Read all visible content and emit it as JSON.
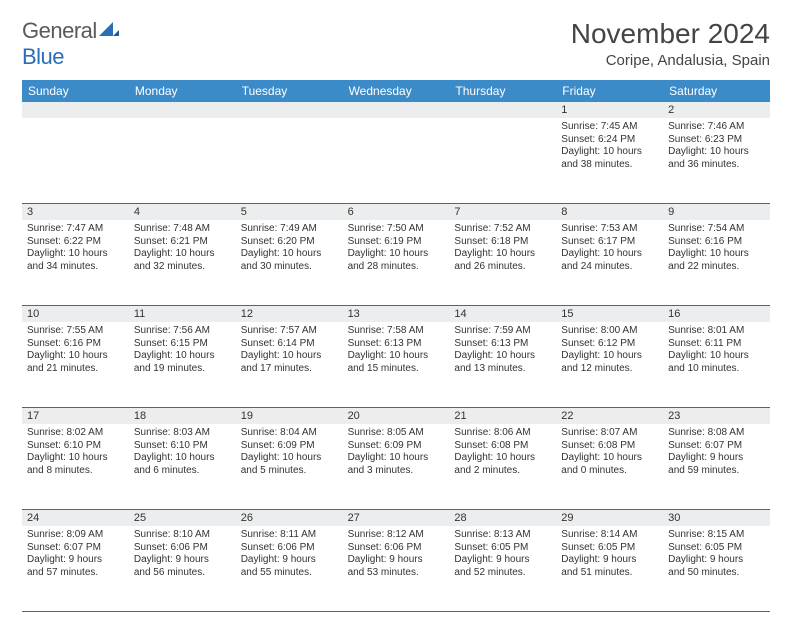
{
  "brand": {
    "name_part1": "General",
    "name_part2": "Blue"
  },
  "header": {
    "month_title": "November 2024",
    "location": "Coripe, Andalusia, Spain"
  },
  "colors": {
    "header_bar": "#3b8bc9",
    "divider": "#2a6fb5",
    "daynum_bg": "#ecedee",
    "text": "#333333",
    "title_text": "#444444",
    "logo_gray": "#5a5a5a",
    "logo_blue": "#2a6fb5",
    "background": "#ffffff"
  },
  "day_labels": [
    "Sunday",
    "Monday",
    "Tuesday",
    "Wednesday",
    "Thursday",
    "Friday",
    "Saturday"
  ],
  "weeks": [
    [
      {
        "day": "",
        "lines": []
      },
      {
        "day": "",
        "lines": []
      },
      {
        "day": "",
        "lines": []
      },
      {
        "day": "",
        "lines": []
      },
      {
        "day": "",
        "lines": []
      },
      {
        "day": "1",
        "lines": [
          "Sunrise: 7:45 AM",
          "Sunset: 6:24 PM",
          "Daylight: 10 hours",
          "and 38 minutes."
        ]
      },
      {
        "day": "2",
        "lines": [
          "Sunrise: 7:46 AM",
          "Sunset: 6:23 PM",
          "Daylight: 10 hours",
          "and 36 minutes."
        ]
      }
    ],
    [
      {
        "day": "3",
        "lines": [
          "Sunrise: 7:47 AM",
          "Sunset: 6:22 PM",
          "Daylight: 10 hours",
          "and 34 minutes."
        ]
      },
      {
        "day": "4",
        "lines": [
          "Sunrise: 7:48 AM",
          "Sunset: 6:21 PM",
          "Daylight: 10 hours",
          "and 32 minutes."
        ]
      },
      {
        "day": "5",
        "lines": [
          "Sunrise: 7:49 AM",
          "Sunset: 6:20 PM",
          "Daylight: 10 hours",
          "and 30 minutes."
        ]
      },
      {
        "day": "6",
        "lines": [
          "Sunrise: 7:50 AM",
          "Sunset: 6:19 PM",
          "Daylight: 10 hours",
          "and 28 minutes."
        ]
      },
      {
        "day": "7",
        "lines": [
          "Sunrise: 7:52 AM",
          "Sunset: 6:18 PM",
          "Daylight: 10 hours",
          "and 26 minutes."
        ]
      },
      {
        "day": "8",
        "lines": [
          "Sunrise: 7:53 AM",
          "Sunset: 6:17 PM",
          "Daylight: 10 hours",
          "and 24 minutes."
        ]
      },
      {
        "day": "9",
        "lines": [
          "Sunrise: 7:54 AM",
          "Sunset: 6:16 PM",
          "Daylight: 10 hours",
          "and 22 minutes."
        ]
      }
    ],
    [
      {
        "day": "10",
        "lines": [
          "Sunrise: 7:55 AM",
          "Sunset: 6:16 PM",
          "Daylight: 10 hours",
          "and 21 minutes."
        ]
      },
      {
        "day": "11",
        "lines": [
          "Sunrise: 7:56 AM",
          "Sunset: 6:15 PM",
          "Daylight: 10 hours",
          "and 19 minutes."
        ]
      },
      {
        "day": "12",
        "lines": [
          "Sunrise: 7:57 AM",
          "Sunset: 6:14 PM",
          "Daylight: 10 hours",
          "and 17 minutes."
        ]
      },
      {
        "day": "13",
        "lines": [
          "Sunrise: 7:58 AM",
          "Sunset: 6:13 PM",
          "Daylight: 10 hours",
          "and 15 minutes."
        ]
      },
      {
        "day": "14",
        "lines": [
          "Sunrise: 7:59 AM",
          "Sunset: 6:13 PM",
          "Daylight: 10 hours",
          "and 13 minutes."
        ]
      },
      {
        "day": "15",
        "lines": [
          "Sunrise: 8:00 AM",
          "Sunset: 6:12 PM",
          "Daylight: 10 hours",
          "and 12 minutes."
        ]
      },
      {
        "day": "16",
        "lines": [
          "Sunrise: 8:01 AM",
          "Sunset: 6:11 PM",
          "Daylight: 10 hours",
          "and 10 minutes."
        ]
      }
    ],
    [
      {
        "day": "17",
        "lines": [
          "Sunrise: 8:02 AM",
          "Sunset: 6:10 PM",
          "Daylight: 10 hours",
          "and 8 minutes."
        ]
      },
      {
        "day": "18",
        "lines": [
          "Sunrise: 8:03 AM",
          "Sunset: 6:10 PM",
          "Daylight: 10 hours",
          "and 6 minutes."
        ]
      },
      {
        "day": "19",
        "lines": [
          "Sunrise: 8:04 AM",
          "Sunset: 6:09 PM",
          "Daylight: 10 hours",
          "and 5 minutes."
        ]
      },
      {
        "day": "20",
        "lines": [
          "Sunrise: 8:05 AM",
          "Sunset: 6:09 PM",
          "Daylight: 10 hours",
          "and 3 minutes."
        ]
      },
      {
        "day": "21",
        "lines": [
          "Sunrise: 8:06 AM",
          "Sunset: 6:08 PM",
          "Daylight: 10 hours",
          "and 2 minutes."
        ]
      },
      {
        "day": "22",
        "lines": [
          "Sunrise: 8:07 AM",
          "Sunset: 6:08 PM",
          "Daylight: 10 hours",
          "and 0 minutes."
        ]
      },
      {
        "day": "23",
        "lines": [
          "Sunrise: 8:08 AM",
          "Sunset: 6:07 PM",
          "Daylight: 9 hours",
          "and 59 minutes."
        ]
      }
    ],
    [
      {
        "day": "24",
        "lines": [
          "Sunrise: 8:09 AM",
          "Sunset: 6:07 PM",
          "Daylight: 9 hours",
          "and 57 minutes."
        ]
      },
      {
        "day": "25",
        "lines": [
          "Sunrise: 8:10 AM",
          "Sunset: 6:06 PM",
          "Daylight: 9 hours",
          "and 56 minutes."
        ]
      },
      {
        "day": "26",
        "lines": [
          "Sunrise: 8:11 AM",
          "Sunset: 6:06 PM",
          "Daylight: 9 hours",
          "and 55 minutes."
        ]
      },
      {
        "day": "27",
        "lines": [
          "Sunrise: 8:12 AM",
          "Sunset: 6:06 PM",
          "Daylight: 9 hours",
          "and 53 minutes."
        ]
      },
      {
        "day": "28",
        "lines": [
          "Sunrise: 8:13 AM",
          "Sunset: 6:05 PM",
          "Daylight: 9 hours",
          "and 52 minutes."
        ]
      },
      {
        "day": "29",
        "lines": [
          "Sunrise: 8:14 AM",
          "Sunset: 6:05 PM",
          "Daylight: 9 hours",
          "and 51 minutes."
        ]
      },
      {
        "day": "30",
        "lines": [
          "Sunrise: 8:15 AM",
          "Sunset: 6:05 PM",
          "Daylight: 9 hours",
          "and 50 minutes."
        ]
      }
    ]
  ]
}
